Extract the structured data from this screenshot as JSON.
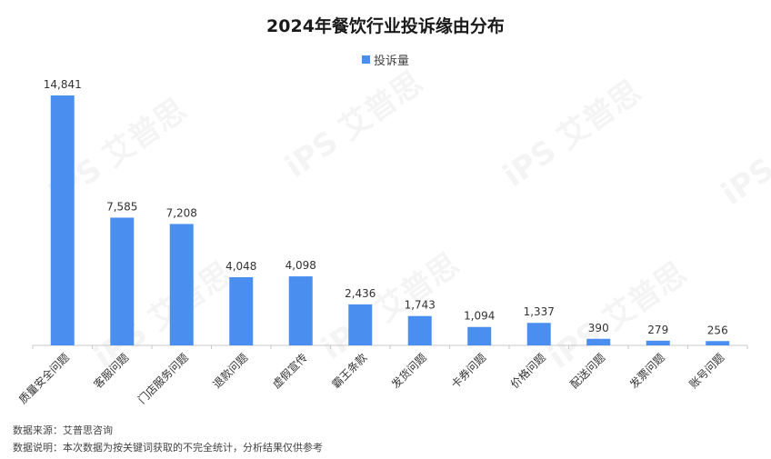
{
  "title": "2024年餐饮行业投诉缘由分布",
  "watermark_text": "iPS 艾普思",
  "colors": {
    "bar": "#4a8ff0",
    "axis": "#c8c8c8",
    "label": "#333333"
  },
  "notes": {
    "source": "数据来源：艾普思咨询",
    "explanation": "数据说明：本次数据为按关键词获取的不完全统计，分析结果仅供参考"
  },
  "chart_data": {
    "type": "bar",
    "title": "2024年餐饮行业投诉缘由分布",
    "categories": [
      "质量安全问题",
      "客服问题",
      "门店服务问题",
      "退款问题",
      "虚假宣传",
      "霸王条款",
      "发货问题",
      "卡券问题",
      "价格问题",
      "配送问题",
      "发票问题",
      "账号问题"
    ],
    "series": [
      {
        "name": "投诉量",
        "values": [
          14841,
          7585,
          7208,
          4048,
          4098,
          2436,
          1743,
          1094,
          1337,
          390,
          279,
          256
        ],
        "labels": [
          "14,841",
          "7,585",
          "7,208",
          "4,048",
          "4,098",
          "2,436",
          "1,743",
          "1,094",
          "1,337",
          "390",
          "279",
          "256"
        ]
      }
    ],
    "ylim": [
      0,
      14841
    ],
    "grid": false,
    "legend_position": "top-center",
    "data_labels": true
  }
}
